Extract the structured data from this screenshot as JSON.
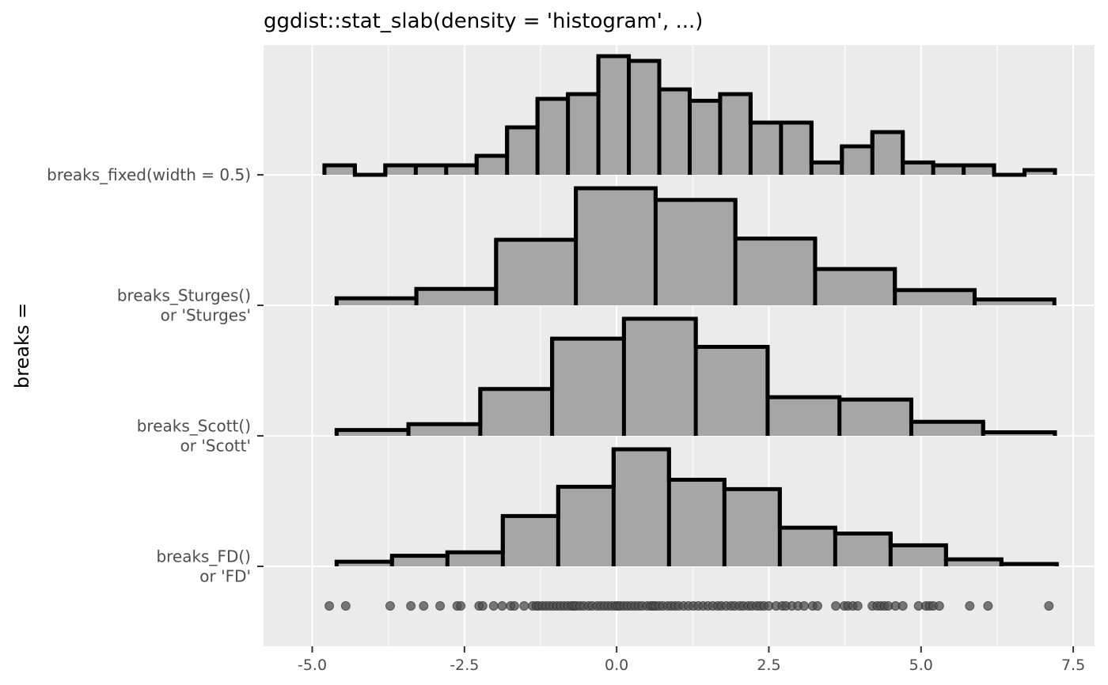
{
  "chart_data": {
    "type": "histogram",
    "title": "ggdist::stat_slab(density = 'histogram', ...)",
    "xlabel": "",
    "ylabel": "breaks =",
    "xlim": [
      -5.8,
      7.85
    ],
    "x_ticks": [
      -5.0,
      -2.5,
      0.0,
      2.5,
      5.0,
      7.5
    ],
    "x_tick_labels": [
      "-5.0",
      "-2.5",
      "0.0",
      "2.5",
      "5.0",
      "7.5"
    ],
    "grid": true,
    "legend": "none",
    "colors": {
      "panel": "#ebebeb",
      "grid": "#ffffff",
      "fill": "#a6a6a6",
      "outline": "#000000",
      "points": "#4d4d4d",
      "label": "#4d4d4d"
    },
    "series": [
      {
        "name": "breaks_fixed(width = 0.5)",
        "label_lines": [
          "breaks_fixed(width = 0.5)"
        ],
        "edges": [
          -4.8,
          -4.3,
          -3.8,
          -3.3,
          -2.8,
          -2.3,
          -1.8,
          -1.3,
          -0.8,
          -0.3,
          0.2,
          0.7,
          1.2,
          1.7,
          2.2,
          2.7,
          3.2,
          3.7,
          4.2,
          4.7,
          5.2,
          5.7,
          6.2,
          6.7,
          7.2
        ],
        "counts": [
          1,
          0,
          1,
          1,
          1,
          2,
          5,
          8,
          8.5,
          12.5,
          12,
          9,
          7.8,
          8.5,
          5.5,
          5.5,
          1.3,
          3,
          4.5,
          1.3,
          1,
          1,
          0,
          0.5
        ]
      },
      {
        "name": "breaks_Sturges()\nor 'Sturges'",
        "label_lines": [
          "breaks_Sturges()",
          "or 'Sturges'"
        ],
        "edges": [
          -4.6,
          -3.29,
          -1.98,
          -0.67,
          0.64,
          1.95,
          3.26,
          4.57,
          5.88,
          7.19
        ],
        "counts": [
          6,
          14,
          56,
          100,
          90,
          57,
          31,
          13,
          5
        ]
      },
      {
        "name": "breaks_Scott()\nor 'Scott'",
        "label_lines": [
          "breaks_Scott()",
          "or 'Scott'"
        ],
        "edges": [
          -4.6,
          -3.42,
          -2.24,
          -1.06,
          0.12,
          1.3,
          2.48,
          3.66,
          4.84,
          6.02,
          7.2
        ],
        "counts": [
          5,
          10,
          40,
          83,
          100,
          76,
          33,
          31,
          12,
          3
        ]
      },
      {
        "name": "breaks_FD()\nor 'FD'",
        "label_lines": [
          "breaks_FD()",
          "or 'FD'"
        ],
        "edges": [
          -4.6,
          -3.69,
          -2.78,
          -1.87,
          -0.96,
          -0.05,
          0.86,
          1.77,
          2.68,
          3.59,
          4.5,
          5.41,
          6.32,
          7.23
        ],
        "counts": [
          4,
          9,
          12,
          43,
          68,
          100,
          74,
          66,
          33,
          28,
          18,
          6,
          2
        ]
      }
    ],
    "points": [
      -4.72,
      -4.45,
      -3.72,
      -3.38,
      -3.17,
      -2.9,
      -2.62,
      -2.56,
      -2.26,
      -2.2,
      -2.02,
      -1.88,
      -1.74,
      -1.68,
      -1.52,
      -1.38,
      -1.32,
      -1.28,
      -1.22,
      -1.16,
      -1.1,
      -1.04,
      -0.98,
      -0.92,
      -0.86,
      -0.8,
      -0.74,
      -0.7,
      -0.66,
      -0.6,
      -0.54,
      -0.46,
      -0.4,
      -0.32,
      -0.26,
      -0.2,
      -0.14,
      -0.08,
      -0.02,
      0.02,
      0.06,
      0.12,
      0.18,
      0.24,
      0.3,
      0.36,
      0.42,
      0.5,
      0.56,
      0.6,
      0.64,
      0.7,
      0.76,
      0.84,
      0.9,
      0.96,
      1.02,
      1.1,
      1.18,
      1.26,
      1.34,
      1.42,
      1.5,
      1.58,
      1.66,
      1.72,
      1.8,
      1.88,
      1.94,
      2.02,
      2.08,
      2.16,
      2.22,
      2.3,
      2.36,
      2.42,
      2.5,
      2.62,
      2.72,
      2.78,
      2.88,
      2.98,
      3.08,
      3.22,
      3.3,
      3.6,
      3.74,
      3.8,
      3.88,
      3.96,
      4.2,
      4.28,
      4.34,
      4.4,
      4.46,
      4.58,
      4.7,
      4.96,
      5.08,
      5.14,
      5.2,
      5.3,
      5.8,
      6.1,
      7.1
    ]
  }
}
